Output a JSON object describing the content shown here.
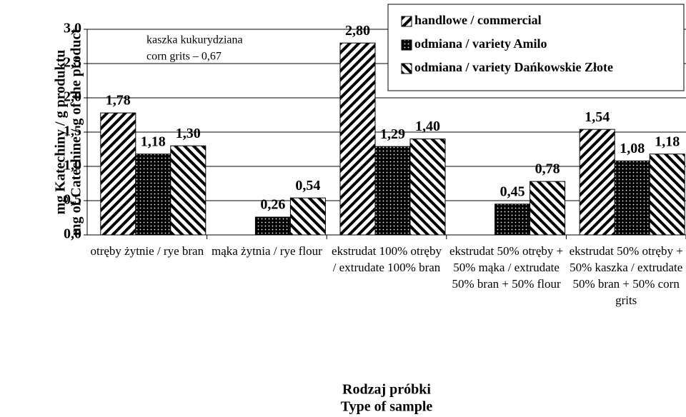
{
  "chart_data": {
    "type": "bar",
    "y_label": [
      "mg Katechiny / g produktu",
      "mg of Catechine / g  of the product"
    ],
    "x_label": [
      "Rodzaj próbki",
      "Type of sample"
    ],
    "annotation": [
      "kaszka kukurydziana",
      "corn grits – 0,67"
    ],
    "categories": [
      "otręby żytnie / rye bran",
      "mąka żytnia / rye flour",
      "ekstrudat 100% otręby / extrudate 100% bran",
      "ekstrudat 50% otręby + 50% mąka / extrudate 50% bran + 50% flour",
      "ekstrudat 50% otręby + 50% kaszka / extrudate 50% bran + 50%  corn grits"
    ],
    "series": [
      {
        "name": "handlowe / commercial",
        "color": "#000000",
        "pattern": "forward-diagonal",
        "values": [
          1.78,
          null,
          2.8,
          null,
          1.54
        ],
        "value_labels": [
          "1,78",
          null,
          "2,80",
          null,
          "1,54"
        ]
      },
      {
        "name": "odmiana / variety Amilo",
        "color": "#000000",
        "pattern": "dots",
        "values": [
          1.18,
          0.26,
          1.29,
          0.45,
          1.08
        ],
        "value_labels": [
          "1,18",
          "0,26",
          "1,29",
          "0,45",
          "1,08"
        ]
      },
      {
        "name": "odmiana / variety Dańkowskie Złote",
        "color": "#000000",
        "pattern": "back-diagonal",
        "values": [
          1.3,
          0.54,
          1.4,
          0.78,
          1.18
        ],
        "value_labels": [
          "1,30",
          "0,54",
          "1,40",
          "0,78",
          "1,18"
        ]
      }
    ],
    "ylim": [
      0,
      3
    ],
    "yticks": [
      {
        "value": 0,
        "label": "0,0"
      },
      {
        "value": 0.5,
        "label": "0,5"
      },
      {
        "value": 1,
        "label": "1,0"
      },
      {
        "value": 1.5,
        "label": "1,5"
      },
      {
        "value": 2,
        "label": "2,0"
      },
      {
        "value": 2.5,
        "label": "2,5"
      },
      {
        "value": 3,
        "label": "3,0"
      }
    ],
    "grid": true,
    "legend": "upper right"
  }
}
